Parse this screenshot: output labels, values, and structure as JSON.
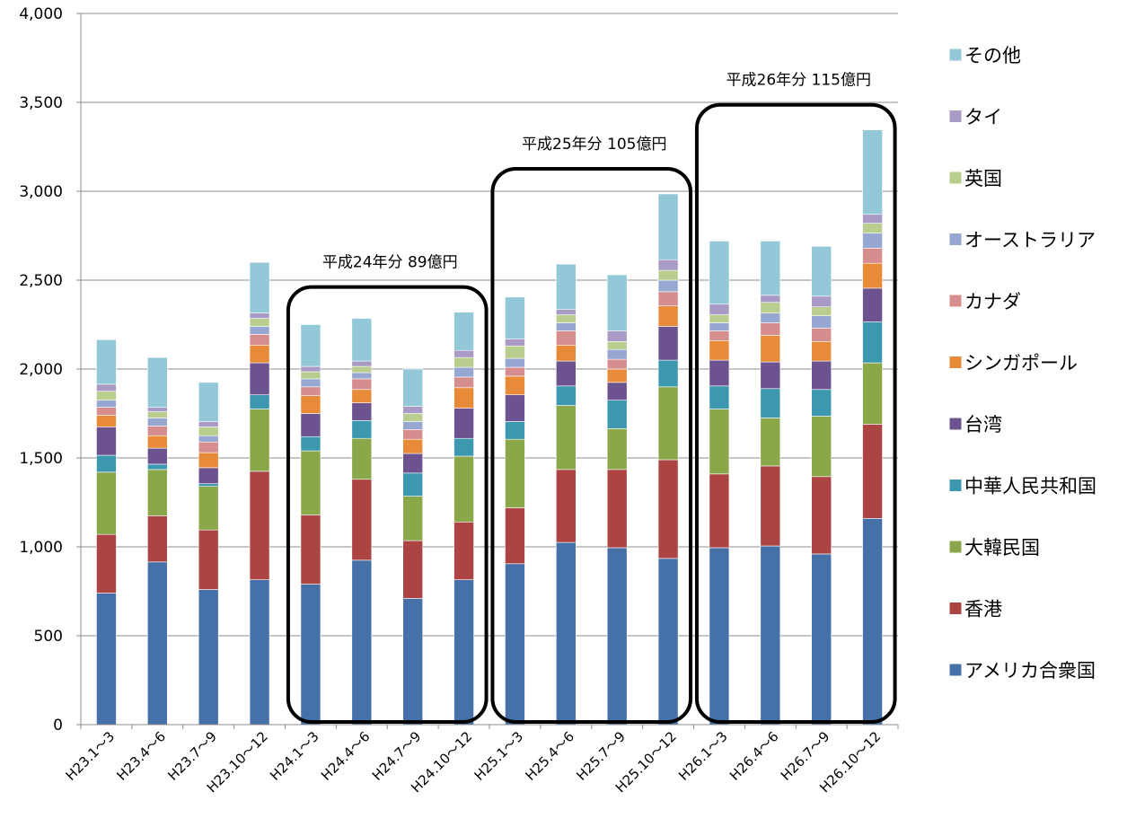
{
  "chart_data": {
    "type": "bar",
    "stacked": true,
    "title": "",
    "xlabel": "",
    "ylabel": "",
    "ylim": [
      0,
      4000
    ],
    "yticks": [
      0,
      500,
      1000,
      1500,
      2000,
      2500,
      3000,
      3500,
      4000
    ],
    "ytick_labels": [
      "0",
      "500",
      "1,000",
      "1,500",
      "2,000",
      "2,500",
      "3,000",
      "3,500",
      "4,000"
    ],
    "grid": true,
    "legend_position": "right",
    "categories": [
      "H23.1～3",
      "H23.4～6",
      "H23.7～9",
      "H23.10～12",
      "H24.1～3",
      "H24.4～6",
      "H24.7～9",
      "H24.10～12",
      "H25.1～3",
      "H25.4～6",
      "H25.7～9",
      "H25.10～12",
      "H26.1～3",
      "H26.4～6",
      "H26.7～9",
      "H26.10～12"
    ],
    "series": [
      {
        "name": "アメリカ合衆国",
        "color": "#4571a8",
        "values": [
          740,
          915,
          760,
          815,
          790,
          925,
          710,
          815,
          905,
          1025,
          995,
          935,
          995,
          1005,
          960,
          1160
        ]
      },
      {
        "name": "香港",
        "color": "#ac4443",
        "values": [
          330,
          260,
          335,
          610,
          390,
          455,
          325,
          325,
          315,
          410,
          440,
          555,
          415,
          450,
          435,
          530
        ]
      },
      {
        "name": "大韓民国",
        "color": "#8aa84a",
        "values": [
          350,
          260,
          245,
          350,
          360,
          230,
          250,
          370,
          385,
          360,
          230,
          410,
          365,
          270,
          340,
          345
        ]
      },
      {
        "name": "中華人民共和国",
        "color": "#3b98ae",
        "values": [
          95,
          30,
          15,
          80,
          80,
          100,
          130,
          100,
          100,
          110,
          160,
          150,
          130,
          165,
          150,
          230
        ]
      },
      {
        "name": "台湾",
        "color": "#6c528f",
        "values": [
          160,
          90,
          90,
          180,
          130,
          100,
          110,
          170,
          150,
          140,
          100,
          190,
          145,
          150,
          160,
          190
        ]
      },
      {
        "name": "シンガポール",
        "color": "#e88b39",
        "values": [
          65,
          70,
          85,
          100,
          100,
          75,
          80,
          115,
          105,
          90,
          75,
          115,
          110,
          150,
          110,
          140
        ]
      },
      {
        "name": "カナダ",
        "color": "#d58e8d",
        "values": [
          45,
          55,
          60,
          60,
          50,
          60,
          55,
          60,
          50,
          80,
          55,
          80,
          55,
          70,
          75,
          85
        ]
      },
      {
        "name": "オーストラリア",
        "color": "#96a8d1",
        "values": [
          40,
          45,
          35,
          45,
          45,
          35,
          45,
          55,
          50,
          45,
          55,
          65,
          45,
          55,
          70,
          85
        ]
      },
      {
        "name": "英国",
        "color": "#b9ce8e",
        "values": [
          50,
          35,
          50,
          45,
          40,
          35,
          45,
          55,
          70,
          45,
          45,
          55,
          45,
          60,
          50,
          55
        ]
      },
      {
        "name": "タイ",
        "color": "#a99bc5",
        "values": [
          40,
          25,
          30,
          30,
          30,
          30,
          40,
          40,
          40,
          30,
          60,
          60,
          60,
          40,
          60,
          50
        ]
      },
      {
        "name": "その他",
        "color": "#93c8d8",
        "values": [
          250,
          280,
          220,
          285,
          235,
          240,
          210,
          215,
          235,
          255,
          315,
          370,
          355,
          305,
          280,
          475
        ]
      }
    ],
    "annotations": [
      {
        "label": "平成24年分 89億円",
        "from_index": 4,
        "to_index": 7
      },
      {
        "label": "平成25年分 105億円",
        "from_index": 8,
        "to_index": 11
      },
      {
        "label": "平成26年分 115億円",
        "from_index": 12,
        "to_index": 15
      }
    ]
  }
}
